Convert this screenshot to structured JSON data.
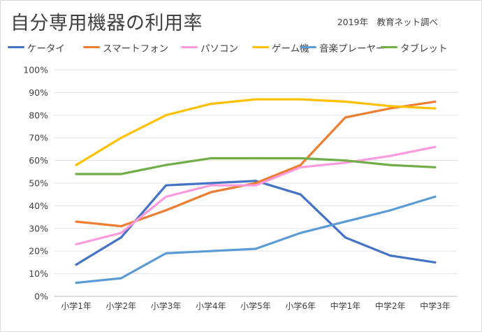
{
  "title": "自分専用機器の利用率",
  "source": "2019年　教育ネット調べ",
  "chart_data": {
    "type": "line",
    "title": "自分専用機器の利用率",
    "xlabel": "",
    "ylabel": "",
    "ylim": [
      0,
      100
    ],
    "y_ticks": [
      "0%",
      "10%",
      "20%",
      "30%",
      "40%",
      "50%",
      "60%",
      "70%",
      "80%",
      "90%",
      "100%"
    ],
    "grid": true,
    "legend_position": "top",
    "categories": [
      "小学1年",
      "小学2年",
      "小学3年",
      "小学4年",
      "小学5年",
      "小学6年",
      "中学1年",
      "中学2年",
      "中学3年"
    ],
    "series": [
      {
        "name": "ケータイ",
        "color": "#4472c4",
        "values": [
          14,
          26,
          49,
          50,
          51,
          45,
          26,
          18,
          15
        ]
      },
      {
        "name": "スマートフォン",
        "color": "#ed7d31",
        "values": [
          33,
          31,
          38,
          46,
          50,
          58,
          79,
          83,
          86
        ]
      },
      {
        "name": "パソコン",
        "color": "#ff99dd",
        "values": [
          23,
          28,
          44,
          49,
          49,
          57,
          59,
          62,
          66
        ]
      },
      {
        "name": "ゲーム機",
        "color": "#ffc000",
        "values": [
          58,
          70,
          80,
          85,
          87,
          87,
          86,
          84,
          83
        ]
      },
      {
        "name": "音楽プレーヤー",
        "color": "#5b9bd5",
        "values": [
          6,
          8,
          19,
          20,
          21,
          28,
          33,
          38,
          44
        ]
      },
      {
        "name": "タブレット",
        "color": "#70ad47",
        "values": [
          54,
          54,
          58,
          61,
          61,
          61,
          60,
          58,
          57
        ]
      }
    ]
  }
}
